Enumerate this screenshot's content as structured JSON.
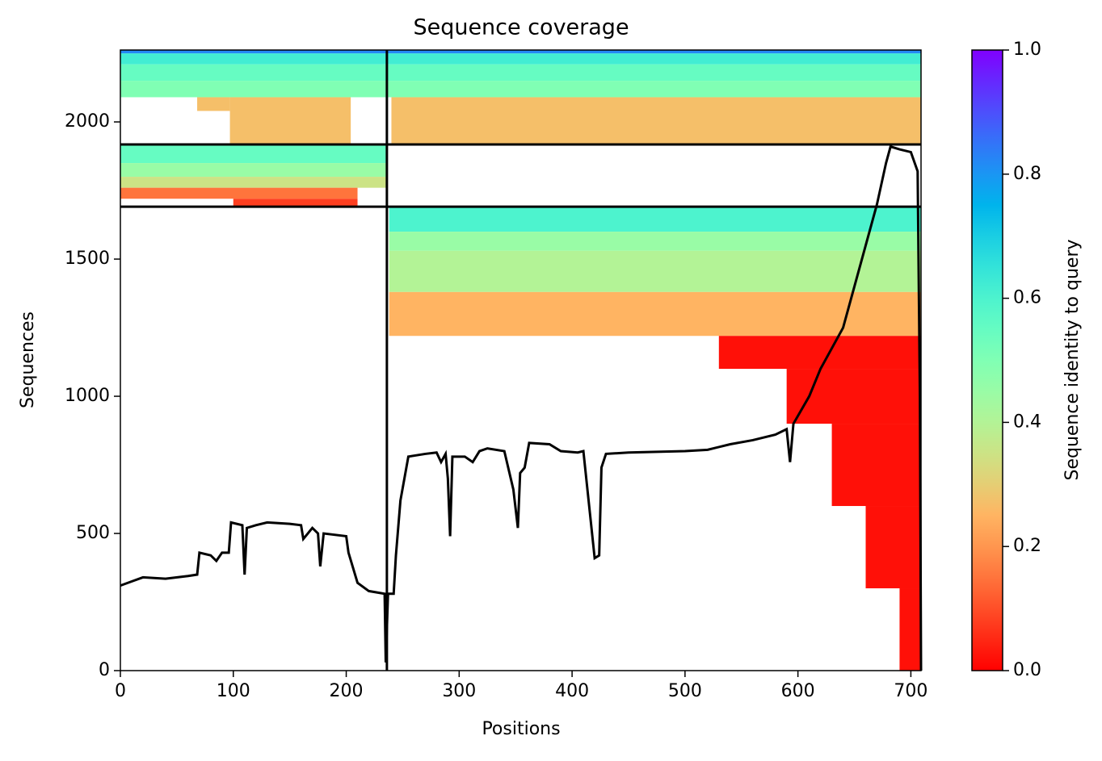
{
  "chart_data": {
    "type": "coverage",
    "title": "Sequence coverage",
    "xlabel": "Positions",
    "ylabel": "Sequences",
    "xlim": [
      0,
      709
    ],
    "ylim": [
      0,
      2262
    ],
    "xticks": [
      0,
      100,
      200,
      300,
      400,
      500,
      600,
      700
    ],
    "yticks": [
      0,
      500,
      1000,
      1500,
      2000
    ],
    "dividers": {
      "x": [
        236
      ],
      "y": [
        1691,
        1918
      ]
    },
    "heatmap": [
      {
        "x": [
          0,
          236
        ],
        "y": [
          2090,
          2150
        ],
        "value": 0.5
      },
      {
        "x": [
          0,
          236
        ],
        "y": [
          2150,
          2210
        ],
        "value": 0.55
      },
      {
        "x": [
          0,
          236
        ],
        "y": [
          2210,
          2250
        ],
        "value": 0.62
      },
      {
        "x": [
          0,
          236
        ],
        "y": [
          2250,
          2262
        ],
        "value": 0.82
      },
      {
        "x": [
          97,
          204
        ],
        "y": [
          1918,
          2090
        ],
        "value": 0.27
      },
      {
        "x": [
          68,
          97
        ],
        "y": [
          2040,
          2090
        ],
        "value": 0.27
      },
      {
        "x": [
          236,
          709
        ],
        "y": [
          2090,
          2150
        ],
        "value": 0.5
      },
      {
        "x": [
          236,
          709
        ],
        "y": [
          2150,
          2210
        ],
        "value": 0.55
      },
      {
        "x": [
          236,
          709
        ],
        "y": [
          2210,
          2250
        ],
        "value": 0.62
      },
      {
        "x": [
          236,
          709
        ],
        "y": [
          2250,
          2262
        ],
        "value": 0.82
      },
      {
        "x": [
          240,
          709
        ],
        "y": [
          1918,
          2090
        ],
        "value": 0.27
      },
      {
        "x": [
          0,
          236
        ],
        "y": [
          1850,
          1918
        ],
        "value": 0.55
      },
      {
        "x": [
          0,
          236
        ],
        "y": [
          1800,
          1850
        ],
        "value": 0.45
      },
      {
        "x": [
          0,
          236
        ],
        "y": [
          1760,
          1800
        ],
        "value": 0.35
      },
      {
        "x": [
          0,
          210
        ],
        "y": [
          1720,
          1760
        ],
        "value": 0.15
      },
      {
        "x": [
          100,
          210
        ],
        "y": [
          1691,
          1720
        ],
        "value": 0.08
      },
      {
        "x": [
          238,
          709
        ],
        "y": [
          1600,
          1691
        ],
        "value": 0.6
      },
      {
        "x": [
          238,
          709
        ],
        "y": [
          1530,
          1600
        ],
        "value": 0.45
      },
      {
        "x": [
          238,
          709
        ],
        "y": [
          1380,
          1530
        ],
        "value": 0.4
      },
      {
        "x": [
          238,
          709
        ],
        "y": [
          1220,
          1380
        ],
        "value": 0.25
      },
      {
        "x": [
          530,
          709
        ],
        "y": [
          1100,
          1220
        ],
        "value": 0.02
      },
      {
        "x": [
          590,
          709
        ],
        "y": [
          900,
          1100
        ],
        "value": 0.02
      },
      {
        "x": [
          630,
          709
        ],
        "y": [
          600,
          900
        ],
        "value": 0.02
      },
      {
        "x": [
          660,
          709
        ],
        "y": [
          300,
          600
        ],
        "value": 0.02
      },
      {
        "x": [
          690,
          709
        ],
        "y": [
          0,
          300
        ],
        "value": 0.02
      }
    ],
    "series": [
      {
        "color": "#000000",
        "x": [
          0,
          10,
          20,
          40,
          60,
          68,
          70,
          80,
          85,
          90,
          96,
          98,
          108,
          110,
          112,
          120,
          130,
          150,
          160,
          162,
          166,
          170,
          175,
          177,
          180,
          200,
          202,
          210,
          220,
          234,
          235,
          237,
          242,
          244,
          248,
          255,
          270,
          280,
          284,
          288,
          290,
          292,
          294,
          305,
          312,
          318,
          325,
          340,
          348,
          352,
          354,
          358,
          362,
          380,
          390,
          405,
          410,
          420,
          424,
          426,
          430,
          450,
          500,
          520,
          540,
          560,
          580,
          590,
          593,
          596,
          610,
          620,
          640,
          650,
          660,
          670,
          678,
          682,
          690,
          700,
          706,
          708,
          709
        ],
        "values": [
          310,
          325,
          340,
          335,
          345,
          350,
          430,
          420,
          400,
          430,
          430,
          540,
          530,
          350,
          520,
          530,
          540,
          535,
          530,
          480,
          500,
          520,
          500,
          380,
          500,
          490,
          430,
          320,
          290,
          280,
          30,
          280,
          280,
          420,
          620,
          780,
          790,
          795,
          760,
          790,
          700,
          490,
          780,
          780,
          760,
          800,
          810,
          800,
          660,
          520,
          720,
          740,
          830,
          825,
          800,
          795,
          800,
          410,
          420,
          740,
          790,
          795,
          800,
          805,
          825,
          840,
          860,
          880,
          760,
          900,
          1000,
          1100,
          1250,
          1400,
          1550,
          1700,
          1850,
          1910,
          1900,
          1890,
          1820,
          1000,
          0
        ]
      }
    ],
    "colorbar": {
      "label": "Sequence identity to query",
      "lim": [
        0,
        1
      ],
      "ticks": [
        {
          "value": 0,
          "label": "0.0"
        },
        0.2,
        0.4,
        0.6,
        0.8,
        {
          "value": 1,
          "label": "1.0"
        }
      ]
    }
  }
}
